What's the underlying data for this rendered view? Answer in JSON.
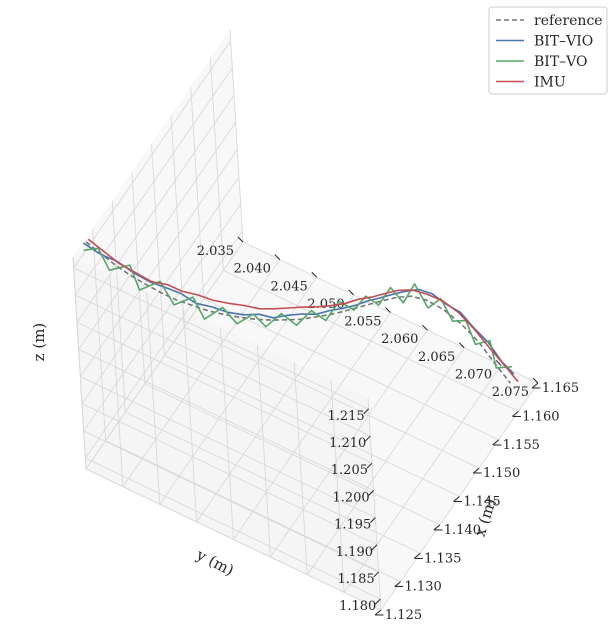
{
  "chart_data": {
    "type": "line",
    "projection": "3d",
    "title": "",
    "xlabel": "x (m)",
    "ylabel": "y (m)",
    "zlabel": "z (m)",
    "xlim": [
      -1.125,
      -1.165
    ],
    "ylim": [
      2.035,
      2.075
    ],
    "zlim": [
      1.178,
      1.217
    ],
    "x_ticks": [
      "−1.125",
      "−1.130",
      "−1.135",
      "−1.140",
      "−1.145",
      "−1.150",
      "−1.155",
      "−1.160",
      "−1.165"
    ],
    "y_ticks": [
      "2.035",
      "2.040",
      "2.045",
      "2.050",
      "2.055",
      "2.060",
      "2.065",
      "2.070",
      "2.075"
    ],
    "z_ticks": [
      "1.180",
      "1.185",
      "1.190",
      "1.195",
      "1.200",
      "1.205",
      "1.210",
      "1.215"
    ],
    "grid": true,
    "legend_position": "top-right",
    "series": [
      {
        "name": "reference",
        "color": "#777777",
        "dash": true,
        "points": [
          [
            -1.1286,
            2.0348,
            1.2159
          ],
          [
            -1.129,
            2.0365,
            1.2144
          ],
          [
            -1.1296,
            2.0382,
            1.2127
          ],
          [
            -1.1303,
            2.0398,
            1.2111
          ],
          [
            -1.1311,
            2.0413,
            1.2097
          ],
          [
            -1.132,
            2.0429,
            1.2082
          ],
          [
            -1.133,
            2.0444,
            1.2068
          ],
          [
            -1.1341,
            2.0458,
            1.2056
          ],
          [
            -1.1353,
            2.0473,
            1.2043
          ],
          [
            -1.1366,
            2.0487,
            1.2032
          ],
          [
            -1.138,
            2.0501,
            1.2021
          ],
          [
            -1.1394,
            2.0513,
            1.2011
          ],
          [
            -1.1409,
            2.0526,
            1.2002
          ],
          [
            -1.1425,
            2.0537,
            1.1993
          ],
          [
            -1.1441,
            2.0549,
            1.1985
          ],
          [
            -1.1458,
            2.0559,
            1.1978
          ],
          [
            -1.1475,
            2.0569,
            1.1971
          ],
          [
            -1.1492,
            2.0578,
            1.1965
          ],
          [
            -1.151,
            2.0587,
            1.1959
          ],
          [
            -1.1528,
            2.0596,
            1.1953
          ],
          [
            -1.1546,
            2.0604,
            1.1946
          ],
          [
            -1.1564,
            2.0612,
            1.1938
          ],
          [
            -1.1582,
            2.0621,
            1.1927
          ],
          [
            -1.1599,
            2.0632,
            1.1909
          ],
          [
            -1.1614,
            2.0646,
            1.1885
          ],
          [
            -1.1627,
            2.0662,
            1.1855
          ],
          [
            -1.1637,
            2.0679,
            1.1822
          ],
          [
            -1.1643,
            2.0697,
            1.1786
          ],
          [
            -1.1649,
            2.0712,
            1.1756
          ]
        ]
      },
      {
        "name": "BIT–VIO",
        "color": "#4c72b0",
        "dash": false,
        "points": [
          [
            -1.128,
            2.0348,
            1.2163
          ],
          [
            -1.1287,
            2.0366,
            1.2147
          ],
          [
            -1.1298,
            2.0383,
            1.2133
          ],
          [
            -1.1305,
            2.0401,
            1.2116
          ],
          [
            -1.1314,
            2.0418,
            1.2101
          ],
          [
            -1.1324,
            2.0432,
            1.209
          ],
          [
            -1.1335,
            2.0447,
            1.2077
          ],
          [
            -1.1342,
            2.0463,
            1.2062
          ],
          [
            -1.1355,
            2.0477,
            1.2051
          ],
          [
            -1.1367,
            2.0492,
            1.2038
          ],
          [
            -1.1381,
            2.0506,
            1.2028
          ],
          [
            -1.1397,
            2.0518,
            1.202
          ],
          [
            -1.1408,
            2.053,
            1.201
          ],
          [
            -1.1426,
            2.0541,
            1.2003
          ],
          [
            -1.1441,
            2.0551,
            1.1996
          ],
          [
            -1.1455,
            2.0562,
            1.1988
          ],
          [
            -1.1473,
            2.0572,
            1.1983
          ],
          [
            -1.1487,
            2.058,
            1.1977
          ],
          [
            -1.1504,
            2.0589,
            1.1971
          ],
          [
            -1.1522,
            2.0597,
            1.1966
          ],
          [
            -1.1538,
            2.0605,
            1.196
          ],
          [
            -1.1555,
            2.0612,
            1.1953
          ],
          [
            -1.1572,
            2.0619,
            1.1945
          ],
          [
            -1.159,
            2.0627,
            1.1935
          ],
          [
            -1.1604,
            2.0637,
            1.1919
          ],
          [
            -1.1614,
            2.0649,
            1.1898
          ],
          [
            -1.1626,
            2.0662,
            1.1878
          ],
          [
            -1.1633,
            2.0676,
            1.185
          ],
          [
            -1.164,
            2.069,
            1.1826
          ],
          [
            -1.1645,
            2.0704,
            1.1795
          ],
          [
            -1.1652,
            2.0716,
            1.1772
          ]
        ]
      },
      {
        "name": "BIT–VO",
        "color": "#55a868",
        "dash": false,
        "points": [
          [
            -1.1274,
            2.0351,
            1.2158
          ],
          [
            -1.129,
            2.0362,
            1.2152
          ],
          [
            -1.1285,
            2.0379,
            1.2128
          ],
          [
            -1.1308,
            2.0394,
            1.2123
          ],
          [
            -1.1302,
            2.0409,
            1.2093
          ],
          [
            -1.1328,
            2.0423,
            1.2091
          ],
          [
            -1.1324,
            2.0443,
            1.2065
          ],
          [
            -1.1349,
            2.0455,
            1.2061
          ],
          [
            -1.1346,
            2.0471,
            1.2034
          ],
          [
            -1.137,
            2.0483,
            1.2038
          ],
          [
            -1.1373,
            2.05,
            1.2016
          ],
          [
            -1.1394,
            2.0511,
            1.2019
          ],
          [
            -1.14,
            2.0524,
            1.1998
          ],
          [
            -1.1423,
            2.0533,
            1.2004
          ],
          [
            -1.1432,
            2.0548,
            1.1983
          ],
          [
            -1.1455,
            2.0556,
            1.1991
          ],
          [
            -1.1467,
            2.0568,
            1.1968
          ],
          [
            -1.1491,
            2.0574,
            1.1982
          ],
          [
            -1.1503,
            2.0587,
            1.1962
          ],
          [
            -1.1524,
            2.0592,
            1.1969
          ],
          [
            -1.1535,
            2.0603,
            1.1948
          ],
          [
            -1.1558,
            2.0607,
            1.1959
          ],
          [
            -1.1564,
            2.062,
            1.1933
          ],
          [
            -1.159,
            2.0622,
            1.1942
          ],
          [
            -1.1591,
            2.0638,
            1.1907
          ],
          [
            -1.1617,
            2.0641,
            1.1899
          ],
          [
            -1.1615,
            2.0657,
            1.187
          ],
          [
            -1.1636,
            2.0663,
            1.1853
          ],
          [
            -1.1628,
            2.0679,
            1.1828
          ],
          [
            -1.1649,
            2.0687,
            1.1818
          ],
          [
            -1.164,
            2.0699,
            1.1785
          ],
          [
            -1.166,
            2.0709,
            1.1773
          ]
        ]
      },
      {
        "name": "IMU",
        "color": "#c44e52",
        "dash": false,
        "points": [
          [
            -1.1295,
            2.0346,
            1.2153
          ],
          [
            -1.1301,
            2.0364,
            1.2135
          ],
          [
            -1.1306,
            2.0382,
            1.2119
          ],
          [
            -1.1315,
            2.0398,
            1.2104
          ],
          [
            -1.1323,
            2.0414,
            1.209
          ],
          [
            -1.1336,
            2.0428,
            1.208
          ],
          [
            -1.1345,
            2.0443,
            1.2068
          ],
          [
            -1.1357,
            2.0457,
            1.2058
          ],
          [
            -1.1368,
            2.0472,
            1.2046
          ],
          [
            -1.1381,
            2.0486,
            1.2036
          ],
          [
            -1.1394,
            2.0499,
            1.2027
          ],
          [
            -1.1407,
            2.0512,
            1.2016
          ],
          [
            -1.1422,
            2.0524,
            1.2008
          ],
          [
            -1.1437,
            2.0535,
            1.2001
          ],
          [
            -1.1453,
            2.0546,
            1.1993
          ],
          [
            -1.1468,
            2.0557,
            1.1985
          ],
          [
            -1.1484,
            2.0567,
            1.1977
          ],
          [
            -1.1501,
            2.0577,
            1.197
          ],
          [
            -1.1519,
            2.0585,
            1.1964
          ],
          [
            -1.1535,
            2.0594,
            1.1957
          ],
          [
            -1.1553,
            2.0602,
            1.195
          ],
          [
            -1.157,
            2.061,
            1.1943
          ],
          [
            -1.1587,
            2.0619,
            1.1932
          ],
          [
            -1.1603,
            2.063,
            1.1915
          ],
          [
            -1.1618,
            2.0643,
            1.1895
          ],
          [
            -1.163,
            2.0657,
            1.187
          ],
          [
            -1.1639,
            2.0672,
            1.184
          ],
          [
            -1.1646,
            2.0688,
            1.1808
          ],
          [
            -1.1654,
            2.0703,
            1.1777
          ],
          [
            -1.166,
            2.0716,
            1.175
          ]
        ]
      }
    ]
  }
}
